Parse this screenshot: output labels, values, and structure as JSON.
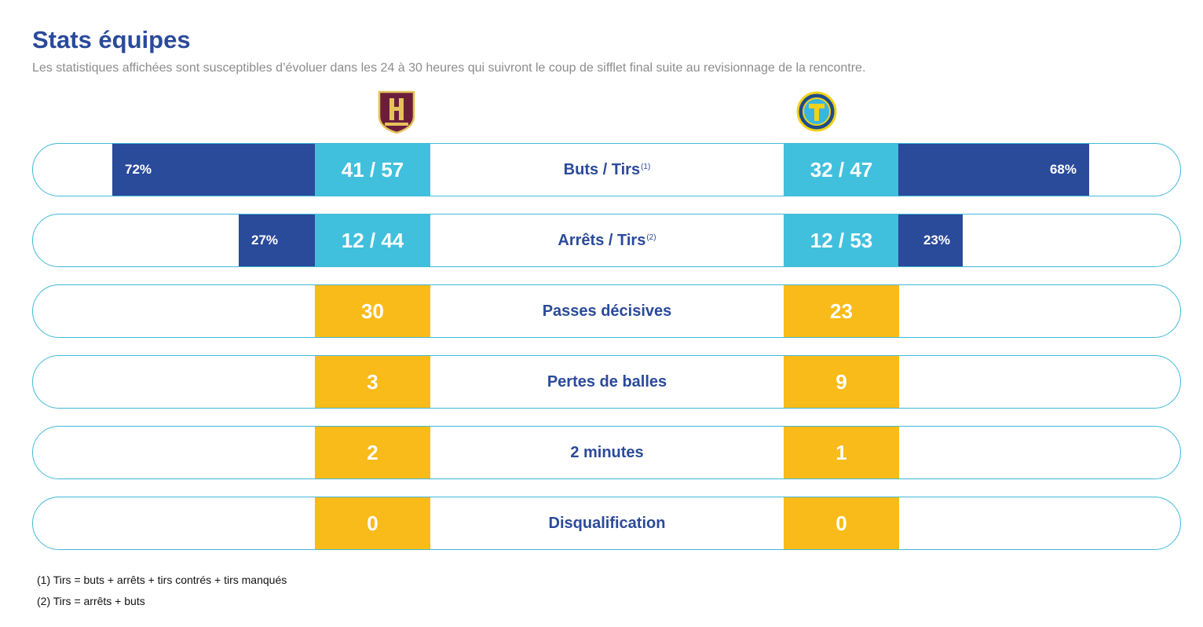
{
  "header": {
    "title": "Stats équipes",
    "subtitle": "Les statistiques affichées sont susceptibles d’évoluer dans les 24 à 30 heures qui suivront le coup de sifflet final suite au revisionnage de la rencontre."
  },
  "teams": {
    "home": {
      "logo_text": "HBC NANTES",
      "logo_letter": "H",
      "colors": {
        "primary": "#6b1e3c",
        "accent": "#e6c25a"
      }
    },
    "away": {
      "logo_text": "TREMBLAY HANDBALL",
      "logo_letter": "T",
      "colors": {
        "primary": "#1d4c8c",
        "accent": "#f2d21b"
      }
    }
  },
  "colors": {
    "title": "#2a4a9a",
    "bar_blue": "#2a4a9a",
    "box_cyan": "#41c0dd",
    "box_yellow": "#f8bb19",
    "row_border": "#41b9d9"
  },
  "stats": [
    {
      "label": "Buts / Tirs",
      "note": "(1)",
      "home": "41 / 57",
      "away": "32 / 47",
      "home_pct": "72%",
      "away_pct": "68%",
      "home_pct_value": 72,
      "away_pct_value": 68,
      "style": "cyan"
    },
    {
      "label": "Arrêts / Tirs",
      "note": "(2)",
      "home": "12 / 44",
      "away": "12 / 53",
      "home_pct": "27%",
      "away_pct": "23%",
      "home_pct_value": 27,
      "away_pct_value": 23,
      "style": "cyan"
    },
    {
      "label": "Passes décisives",
      "note": "",
      "home": "30",
      "away": "23",
      "style": "yellow"
    },
    {
      "label": "Pertes de balles",
      "note": "",
      "home": "3",
      "away": "9",
      "style": "yellow"
    },
    {
      "label": "2 minutes",
      "note": "",
      "home": "2",
      "away": "1",
      "style": "yellow"
    },
    {
      "label": "Disqualification",
      "note": "",
      "home": "0",
      "away": "0",
      "style": "yellow"
    }
  ],
  "footnotes": [
    "(1) Tirs = buts + arrêts + tirs contrés + tirs manqués",
    "(2) Tirs = arrêts + buts"
  ]
}
